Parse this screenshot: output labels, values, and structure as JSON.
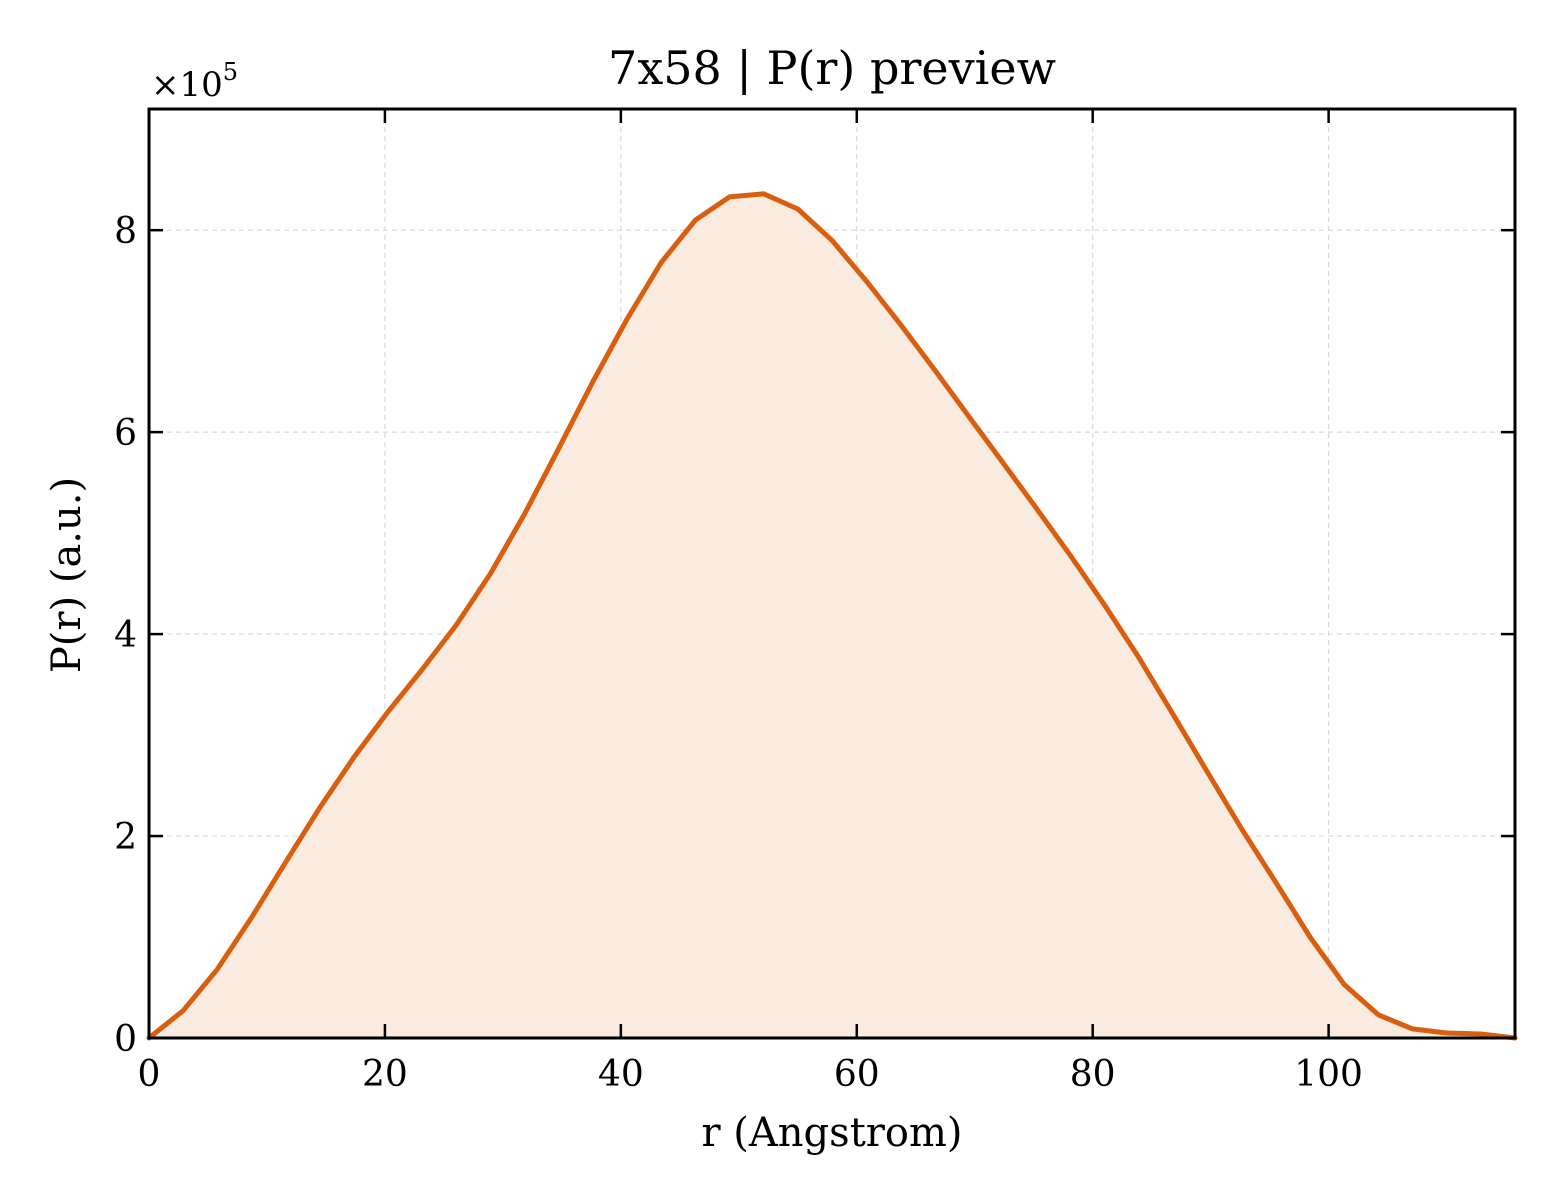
{
  "chart_data": {
    "type": "area",
    "title": "7x58 | P(r) preview",
    "xlabel": "r (Angstrom)",
    "ylabel": "P(r) (a.u.)",
    "y_offset_label": "×10",
    "y_offset_exponent": "5",
    "xlim": [
      0,
      115.8
    ],
    "ylim": [
      0,
      9.2
    ],
    "grid": true,
    "x_ticks": [
      0,
      20,
      40,
      60,
      80,
      100
    ],
    "x_tick_labels": [
      "0",
      "20",
      "40",
      "60",
      "80",
      "100"
    ],
    "y_ticks": [
      0,
      2,
      4,
      6,
      8
    ],
    "y_tick_labels": [
      "0",
      "2",
      "4",
      "6",
      "8"
    ],
    "colors": {
      "line": "#d95f0e",
      "fill": "#f9ebe0",
      "grid": "#d9d9d9"
    },
    "series": [
      {
        "x": [
          0,
          2.89,
          5.79,
          8.68,
          11.58,
          14.47,
          17.37,
          20.26,
          23.16,
          26.05,
          28.95,
          31.84,
          34.74,
          37.63,
          40.53,
          43.42,
          46.32,
          49.21,
          52.11,
          55.0,
          57.89,
          60.79,
          63.68,
          66.58,
          69.47,
          72.37,
          75.26,
          78.16,
          81.05,
          83.95,
          86.84,
          89.74,
          92.63,
          95.53,
          98.42,
          101.32,
          104.21,
          107.11,
          110.0,
          112.9,
          115.8
        ],
        "y": [
          0.0,
          0.27,
          0.68,
          1.19,
          1.74,
          2.28,
          2.78,
          3.23,
          3.65,
          4.09,
          4.6,
          5.19,
          5.84,
          6.5,
          7.12,
          7.68,
          8.1,
          8.33,
          8.36,
          8.21,
          7.9,
          7.5,
          7.07,
          6.62,
          6.16,
          5.7,
          5.24,
          4.77,
          4.28,
          3.76,
          3.2,
          2.63,
          2.07,
          1.54,
          1.0,
          0.53,
          0.23,
          0.09,
          0.05,
          0.04,
          0.0
        ]
      }
    ]
  }
}
